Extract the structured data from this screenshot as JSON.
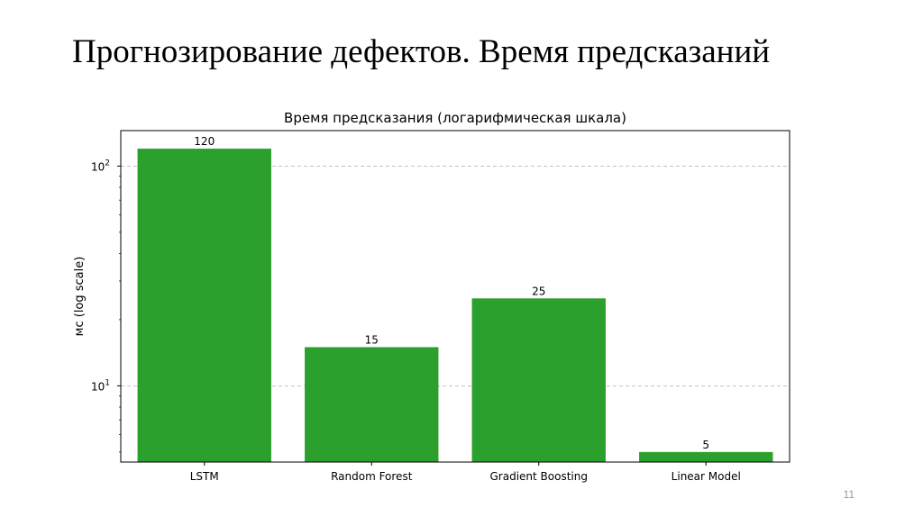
{
  "slide": {
    "title": "Прогнозирование дефектов. Время предсказаний",
    "page_number": "11"
  },
  "colors": {
    "bar": "#2ca02c",
    "grid": "#b0b0b0",
    "axis": "#000000"
  },
  "chart_data": {
    "type": "bar",
    "title": "Время предсказания (логарифмическая шкала)",
    "xlabel": "",
    "ylabel": "мс (log scale)",
    "yscale": "log",
    "ylim": [
      4.5,
      145
    ],
    "categories": [
      "LSTM",
      "Random Forest",
      "Gradient Boosting",
      "Linear Model"
    ],
    "values": [
      120,
      15,
      25,
      5
    ],
    "data_labels": [
      "120",
      "15",
      "25",
      "5"
    ],
    "major_ticks": [
      {
        "value": 10,
        "base": "10",
        "exp": "1"
      },
      {
        "value": 100,
        "base": "10",
        "exp": "2"
      }
    ],
    "minor_ticks": [
      5,
      6,
      7,
      8,
      9,
      20,
      30,
      40,
      50,
      60,
      70,
      80,
      90
    ],
    "grid": true,
    "grid_style": "dashed, horizontal, major ticks only"
  }
}
